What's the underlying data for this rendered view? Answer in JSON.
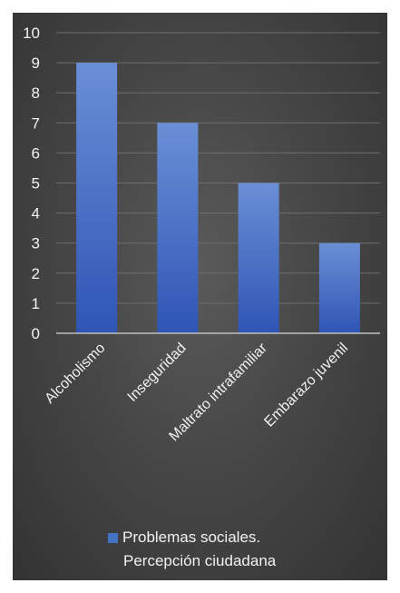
{
  "chart_data": {
    "type": "bar",
    "categories": [
      "Alcoholismo",
      "Inseguridad",
      "Maltrato intrafamiliar",
      "Embarazo juvenil"
    ],
    "series": [
      {
        "name": "Problemas sociales. Percepción ciudadana",
        "values": [
          9,
          7,
          5,
          3
        ],
        "color": "#4472c4"
      }
    ],
    "ylim": [
      0,
      10
    ],
    "yticks": [
      "0",
      "1",
      "2",
      "3",
      "4",
      "5",
      "6",
      "7",
      "8",
      "9",
      "10"
    ],
    "grid": true,
    "legend_position": "bottom",
    "legend_lines": [
      "Problemas sociales.",
      "Percepción ciudadana"
    ]
  }
}
